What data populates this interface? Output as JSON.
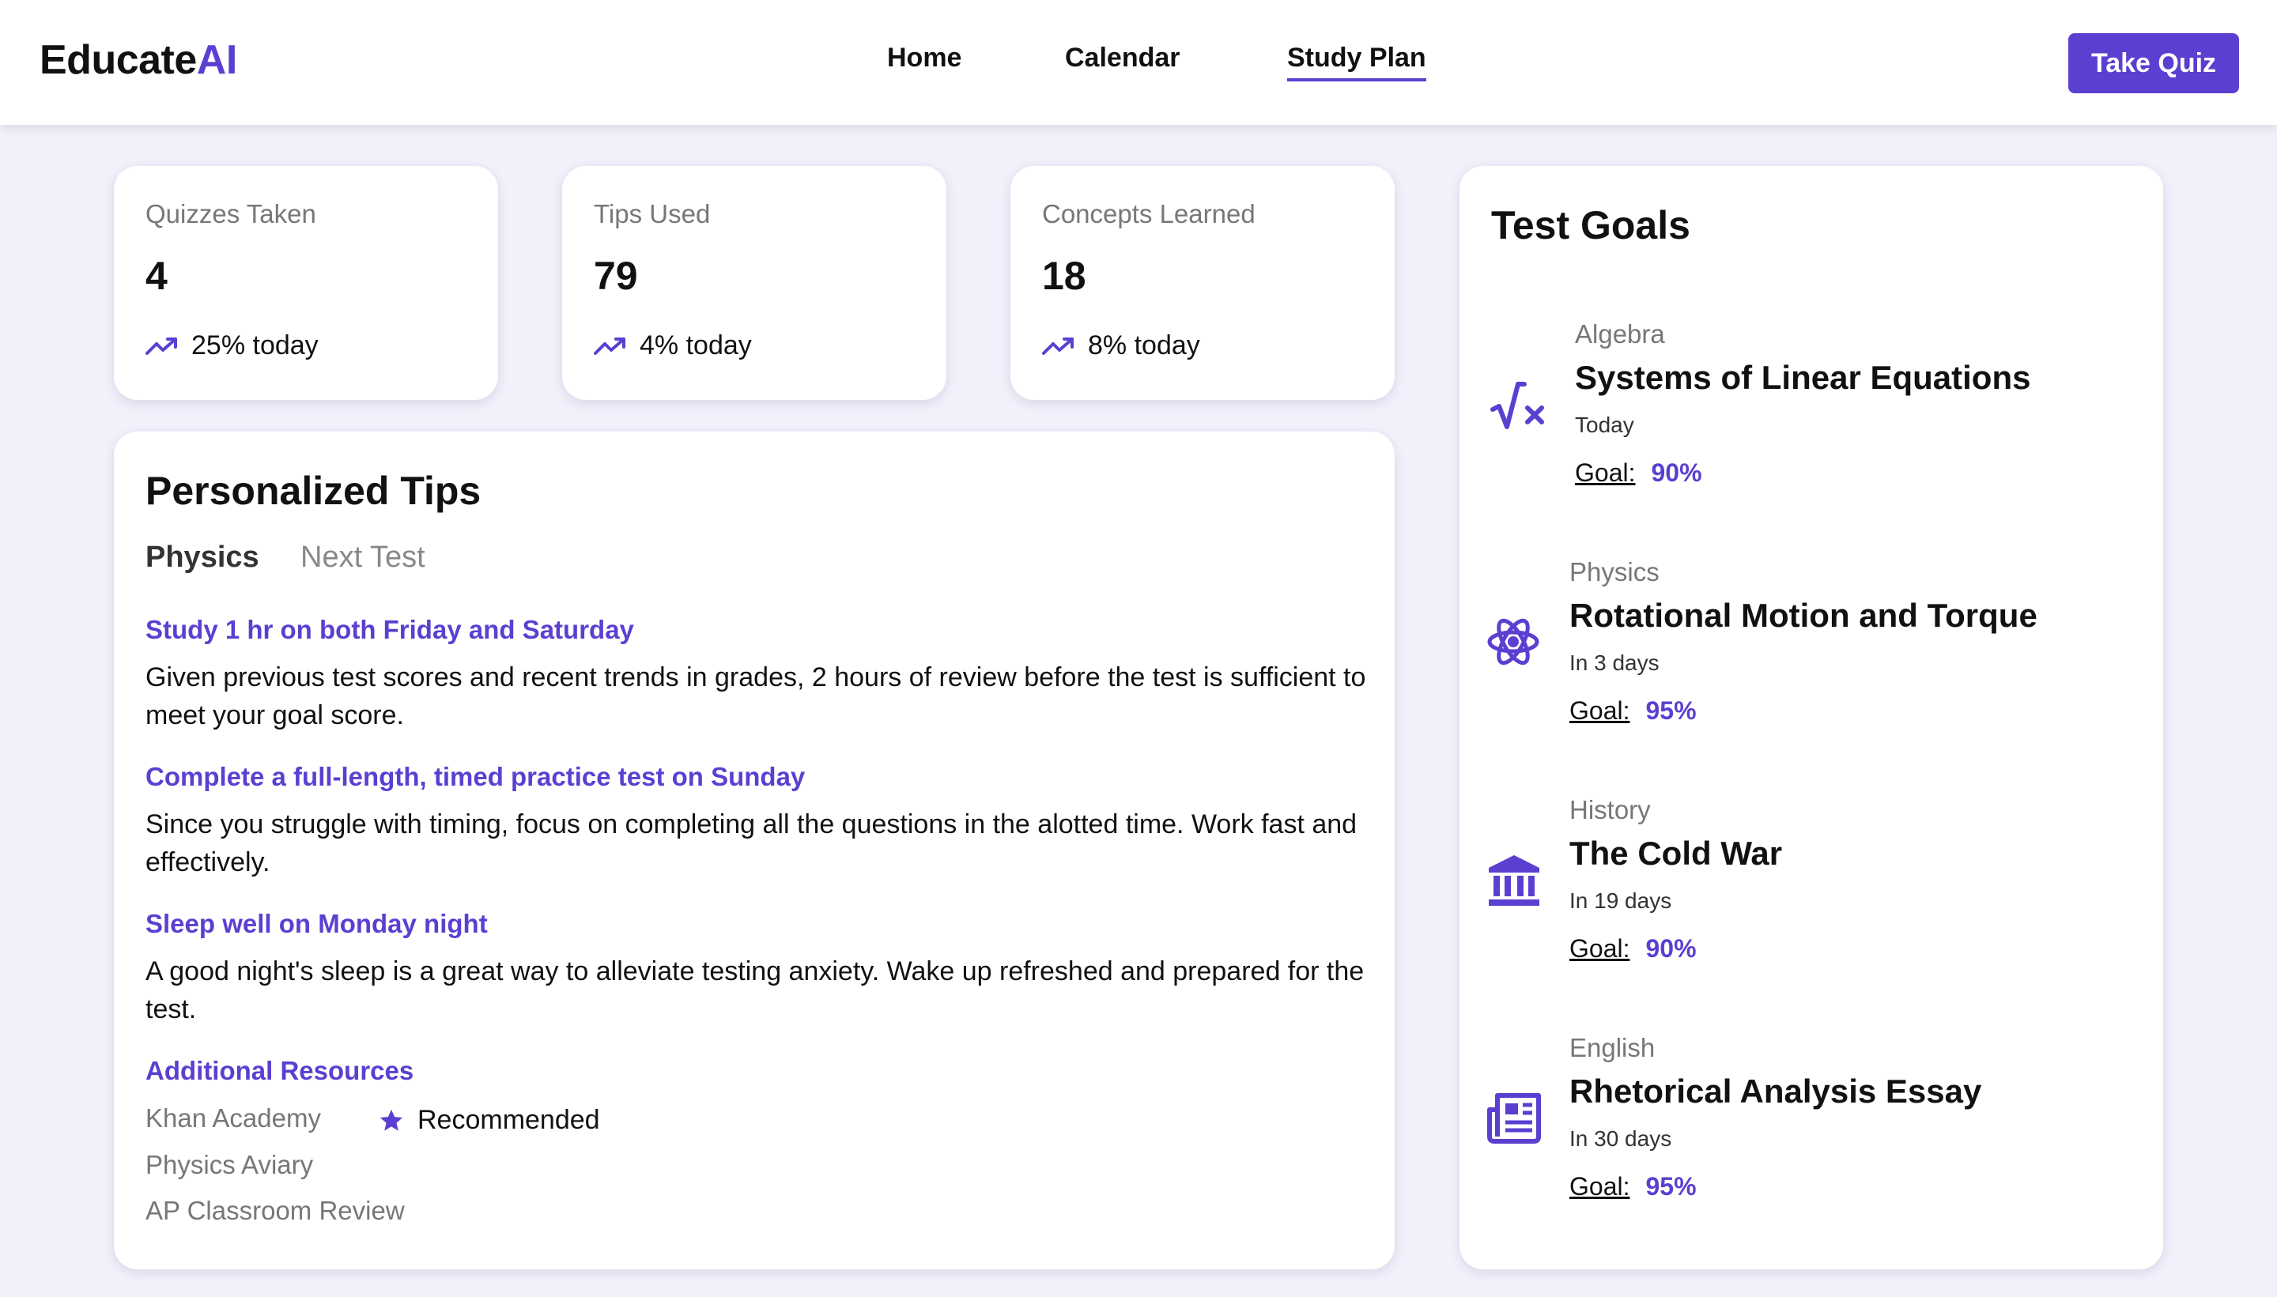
{
  "header": {
    "logo_main": "Educate",
    "logo_accent": "AI",
    "nav": [
      "Home",
      "Calendar",
      "Study Plan"
    ],
    "active_nav": "Study Plan",
    "cta": "Take Quiz"
  },
  "stats": [
    {
      "label": "Quizzes Taken",
      "value": "4",
      "trend": "25% today"
    },
    {
      "label": "Tips Used",
      "value": "79",
      "trend": "4% today"
    },
    {
      "label": "Concepts Learned",
      "value": "18",
      "trend": "8% today"
    }
  ],
  "tips": {
    "title": "Personalized Tips",
    "tabs": [
      "Physics",
      "Next Test"
    ],
    "items": [
      {
        "title": "Study 1 hr on both Friday and Saturday",
        "body": "Given previous test scores and recent trends in grades, 2 hours of review before the test is sufficient to meet your goal score."
      },
      {
        "title": "Complete a full-length, timed practice test on Sunday",
        "body": "Since you struggle with timing, focus on completing all the questions in the alotted time. Work fast and effectively."
      },
      {
        "title": "Sleep well on Monday night",
        "body": "A good night's sleep is a great way to alleviate testing anxiety. Wake up refreshed and prepared for the test."
      }
    ],
    "resources_title": "Additional Resources",
    "resources": [
      "Khan Academy",
      "Physics Aviary",
      "AP Classroom Review"
    ],
    "recommended_label": "Recommended"
  },
  "goals": {
    "title": "Test Goals",
    "goal_label": "Goal:",
    "items": [
      {
        "subject": "Algebra",
        "title": "Systems of Linear Equations",
        "due": "Today",
        "goal": "90%",
        "icon": "square-root-icon"
      },
      {
        "subject": "Physics",
        "title": "Rotational Motion and Torque",
        "due": "In 3 days",
        "goal": "95%",
        "icon": "atom-icon"
      },
      {
        "subject": "History",
        "title": "The Cold War",
        "due": "In 19 days",
        "goal": "90%",
        "icon": "museum-icon"
      },
      {
        "subject": "English",
        "title": "Rhetorical Analysis Essay",
        "due": "In 30 days",
        "goal": "95%",
        "icon": "newspaper-icon"
      }
    ]
  },
  "colors": {
    "accent": "#5b3fd1",
    "background": "#f1f0fb"
  }
}
